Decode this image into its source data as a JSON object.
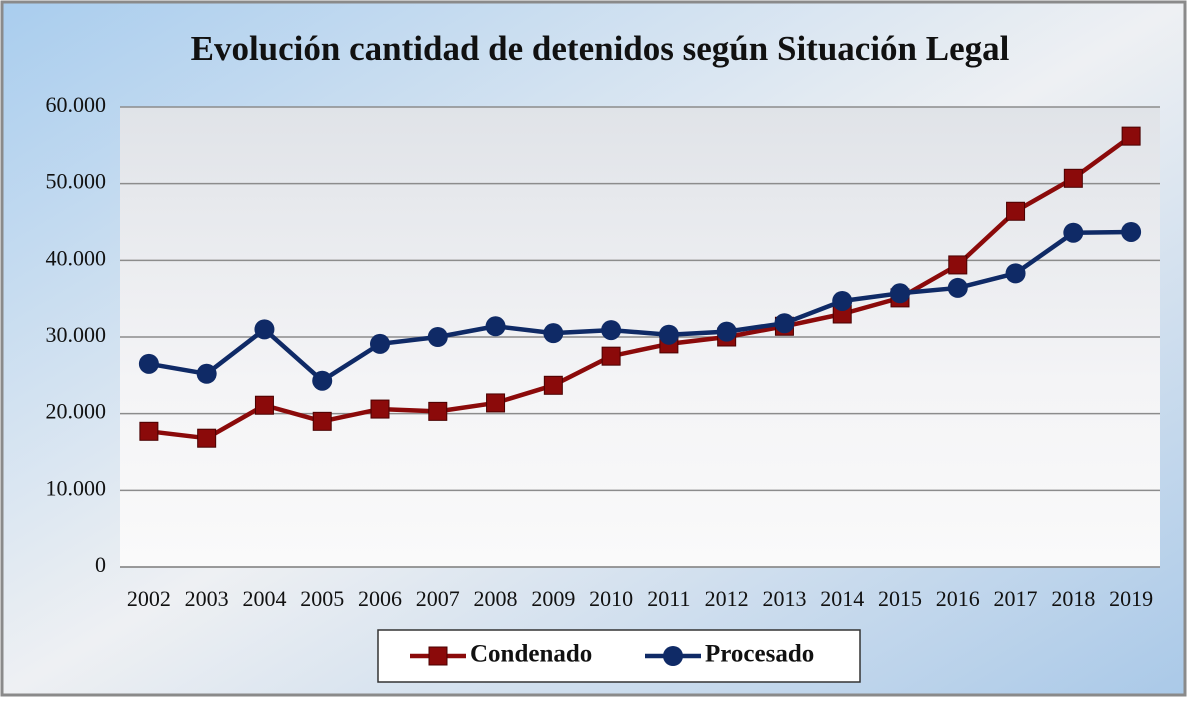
{
  "chart_data": {
    "type": "line",
    "title": "Evolución cantidad de detenidos según Situación Legal",
    "categories": [
      "2002",
      "2003",
      "2004",
      "2005",
      "2006",
      "2007",
      "2008",
      "2009",
      "2010",
      "2011",
      "2012",
      "2013",
      "2014",
      "2015",
      "2016",
      "2017",
      "2018",
      "2019"
    ],
    "series": [
      {
        "name": "Condenado",
        "color": "#8b0a0a",
        "marker": "square",
        "values": [
          17700,
          16800,
          21100,
          19000,
          20600,
          20300,
          21400,
          23700,
          27500,
          29100,
          30000,
          31400,
          33000,
          35100,
          39400,
          46400,
          50700,
          56200
        ]
      },
      {
        "name": "Procesado",
        "color": "#0f2a66",
        "marker": "circle",
        "values": [
          26500,
          25200,
          31000,
          24300,
          29100,
          30000,
          31400,
          30500,
          30900,
          30300,
          30700,
          31800,
          34700,
          35700,
          36400,
          38300,
          43600,
          43700
        ]
      }
    ],
    "ylim": [
      0,
      60000
    ],
    "yticks": [
      0,
      {
        "value": 10000,
        "label": "10.000"
      },
      {
        "value": 20000,
        "label": "20.000"
      },
      {
        "value": 30000,
        "label": "30.000"
      },
      {
        "value": 40000,
        "label": "40.000"
      },
      {
        "value": 50000,
        "label": "50.000"
      },
      {
        "value": 60000,
        "label": "60.000"
      }
    ],
    "grid": true,
    "legend": "bottom"
  }
}
